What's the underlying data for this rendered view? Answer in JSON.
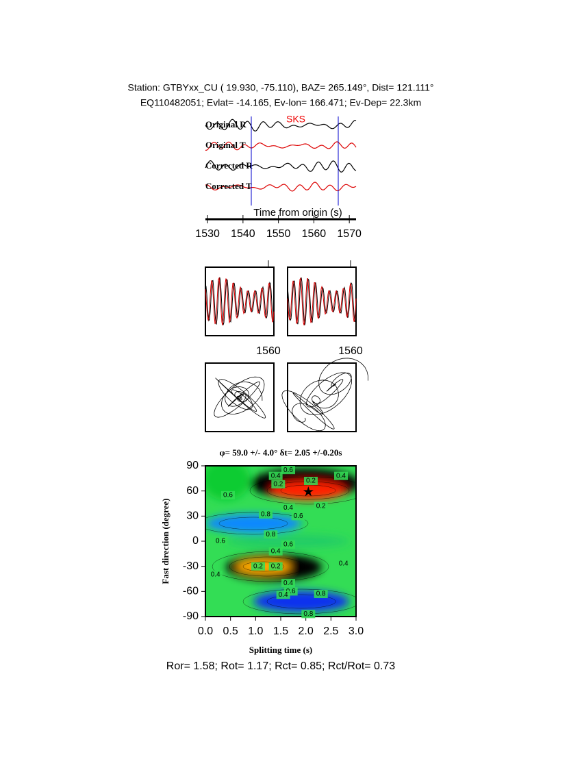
{
  "header": {
    "line1": "Station: GTBYxx_CU (  19.930,  -75.110), BAZ=  265.149°, Dist=  121.111°",
    "line2": "EQ110482051; Evlat= -14.165, Ev-lon= 166.471; Ev-Dep= 22.3km"
  },
  "waveforms": {
    "traces": [
      "Original R",
      "Original T",
      "Corrected R",
      "Corrected T"
    ],
    "phase": "SKS",
    "xlabel": "Time from origin (s)",
    "xlim": [
      1529.4,
      1571.9
    ],
    "xticks": [
      1530,
      1540,
      1550,
      1560,
      1570
    ]
  },
  "windows": {
    "left_xticks": [
      1560
    ],
    "right_xticks": [
      1560
    ]
  },
  "grid_search": {
    "title": "φ= 59.0 +/- 4.0° δt= 2.05 +/-0.20s",
    "xlabel": "Splitting time (s)",
    "ylabel": "Fast direction (degree)",
    "xlim": [
      0,
      3
    ],
    "xticks": [
      {
        "value": 0,
        "label": "0.0"
      },
      {
        "value": 0.5,
        "label": "0.5"
      },
      {
        "value": 1,
        "label": "1.0"
      },
      {
        "value": 1.5,
        "label": "1.5"
      },
      {
        "value": 2,
        "label": "2.0"
      },
      {
        "value": 2.5,
        "label": "2.5"
      },
      {
        "value": 3,
        "label": "3.0"
      }
    ],
    "ylim": [
      -90,
      90
    ],
    "yticks": [
      -90,
      -60,
      -30,
      0,
      30,
      60,
      90
    ],
    "best": {
      "dt": 2.05,
      "phi": 59.0
    },
    "contour_labels": [
      {
        "x": 1.4,
        "y": 78,
        "label": "0.4"
      },
      {
        "x": 1.65,
        "y": 85,
        "label": "0.6"
      },
      {
        "x": 2.1,
        "y": 72,
        "label": "0.2"
      },
      {
        "x": 2.7,
        "y": 78,
        "label": "0.4"
      },
      {
        "x": 1.45,
        "y": 68,
        "label": "0.2"
      },
      {
        "x": 0.45,
        "y": 55,
        "label": "0.6"
      },
      {
        "x": 2.3,
        "y": 42,
        "label": "0.2"
      },
      {
        "x": 1.65,
        "y": 40,
        "label": "0.4"
      },
      {
        "x": 1.85,
        "y": 30,
        "label": "0.6"
      },
      {
        "x": 1.2,
        "y": 32,
        "label": "0.8"
      },
      {
        "x": 1.3,
        "y": 8,
        "label": "0.8"
      },
      {
        "x": 0.3,
        "y": 0,
        "label": "0.6"
      },
      {
        "x": 1.4,
        "y": -12,
        "label": "0.4"
      },
      {
        "x": 1.65,
        "y": -4,
        "label": "0.6"
      },
      {
        "x": 1.05,
        "y": -30,
        "label": "0.2"
      },
      {
        "x": 1.4,
        "y": -30,
        "label": "0.2"
      },
      {
        "x": 2.75,
        "y": -27,
        "label": "0.4"
      },
      {
        "x": 0.2,
        "y": -40,
        "label": "0.4"
      },
      {
        "x": 1.65,
        "y": -50,
        "label": "0.4"
      },
      {
        "x": 1.7,
        "y": -60,
        "label": "0.6"
      },
      {
        "x": 1.55,
        "y": -64,
        "label": "0.4"
      },
      {
        "x": 2.3,
        "y": -63,
        "label": "0.8"
      },
      {
        "x": 2.05,
        "y": -87,
        "label": "0.8"
      }
    ]
  },
  "footer": "Ror= 1.58; Rot= 1.17; Rct= 0.85; Rct/Rot= 0.73"
}
